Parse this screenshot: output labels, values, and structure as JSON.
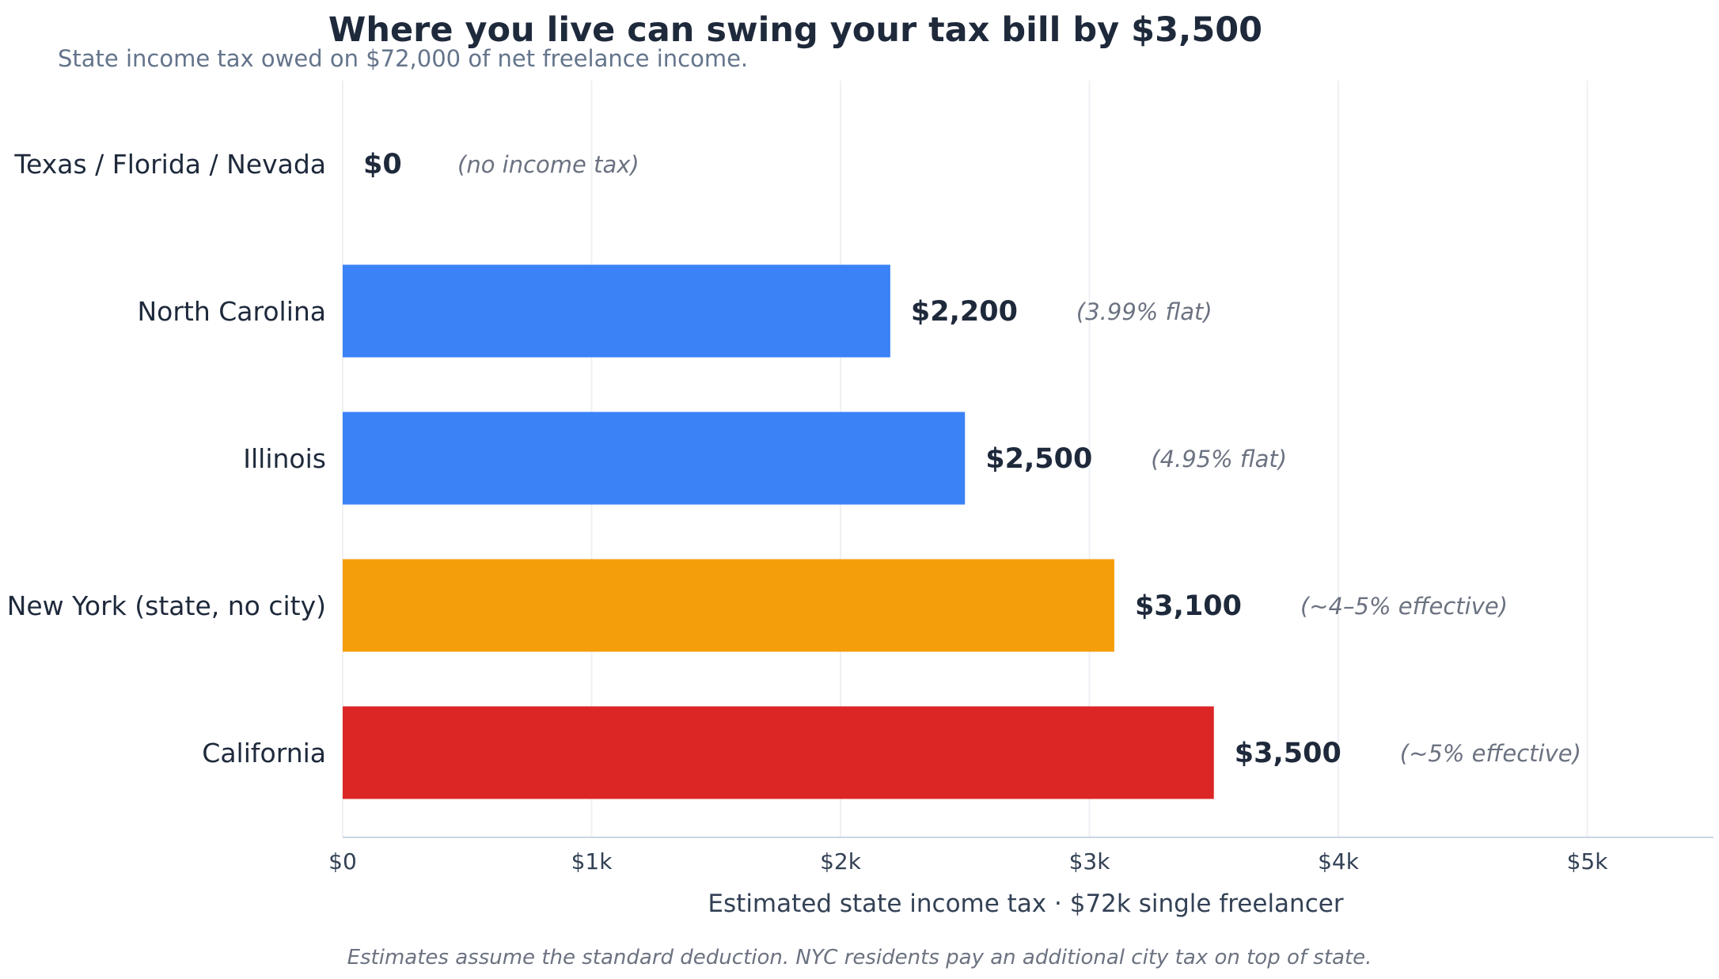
{
  "chart_data": {
    "type": "bar",
    "orientation": "horizontal",
    "title": "Where you live can swing your tax bill by $3,500",
    "subtitle": "State income tax owed on $72,000 of net freelance income.",
    "xlabel": "Estimated state income tax · $72k single freelancer",
    "ylabel": "",
    "footnote": "Estimates assume the standard deduction. NYC residents pay an additional city tax on top of state.",
    "xlim": [
      0,
      5500
    ],
    "xticks": [
      0,
      1000,
      2000,
      3000,
      4000,
      5000
    ],
    "xtick_labels": [
      "$0",
      "$1k",
      "$2k",
      "$3k",
      "$4k",
      "$5k"
    ],
    "grid": "vertical",
    "categories": [
      "Texas / Florida / Nevada",
      "North Carolina",
      "Illinois",
      "New York (state, no city)",
      "California"
    ],
    "values": [
      0,
      2200,
      2500,
      3100,
      3500
    ],
    "value_labels": [
      "$0",
      "$2,200",
      "$2,500",
      "$3,100",
      "$3,500"
    ],
    "notes": [
      "(no income tax)",
      "(3.99% flat)",
      "(4.95% flat)",
      "(~4–5% effective)",
      "(~5% effective)"
    ],
    "colors": [
      "#3b82f6",
      "#3b82f6",
      "#3b82f6",
      "#f59e0b",
      "#dc2626"
    ]
  }
}
